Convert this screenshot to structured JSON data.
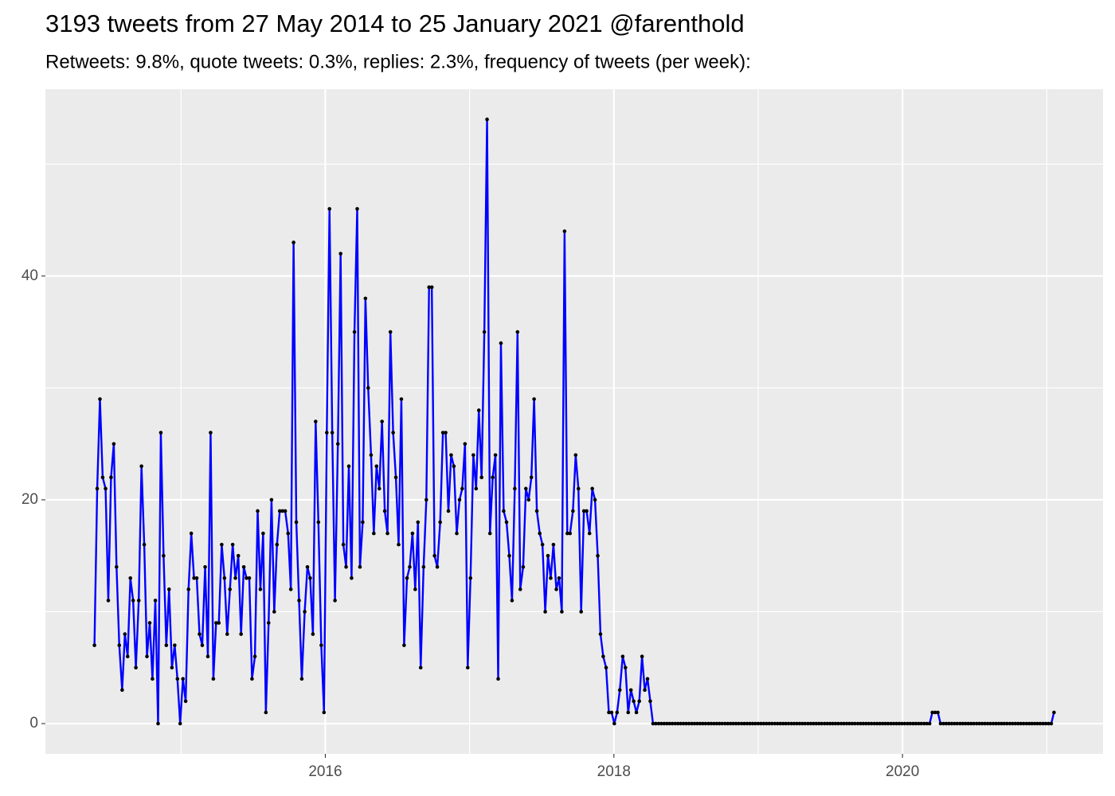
{
  "chart_data": {
    "type": "line",
    "title": "3193 tweets from 27 May 2014 to 25 January 2021 @farenthold",
    "subtitle": "Retweets: 9.8%, quote tweets: 0.3%, replies: 2.3%, frequency of tweets (per week):",
    "color": "#0000ff",
    "point_color": "#000000",
    "grid": true,
    "xlim": [
      2014.06,
      2021.39
    ],
    "xticks": [
      2016,
      2018,
      2020
    ],
    "ylim": [
      -2.7,
      56.7
    ],
    "yticks": [
      0,
      20,
      40
    ],
    "x": [
      2014.4,
      2014.419,
      2014.438,
      2014.457,
      2014.477,
      2014.496,
      2014.515,
      2014.534,
      2014.553,
      2014.572,
      2014.592,
      2014.611,
      2014.63,
      2014.649,
      2014.668,
      2014.687,
      2014.707,
      2014.726,
      2014.745,
      2014.764,
      2014.783,
      2014.802,
      2014.822,
      2014.841,
      2014.86,
      2014.879,
      2014.898,
      2014.917,
      2014.937,
      2014.956,
      2014.975,
      2014.994,
      2015.013,
      2015.032,
      2015.052,
      2015.071,
      2015.09,
      2015.109,
      2015.128,
      2015.147,
      2015.167,
      2015.186,
      2015.205,
      2015.224,
      2015.243,
      2015.262,
      2015.282,
      2015.301,
      2015.32,
      2015.339,
      2015.358,
      2015.377,
      2015.397,
      2015.416,
      2015.435,
      2015.454,
      2015.473,
      2015.492,
      2015.512,
      2015.531,
      2015.55,
      2015.569,
      2015.588,
      2015.607,
      2015.627,
      2015.646,
      2015.665,
      2015.684,
      2015.703,
      2015.722,
      2015.742,
      2015.761,
      2015.78,
      2015.799,
      2015.818,
      2015.837,
      2015.857,
      2015.876,
      2015.895,
      2015.914,
      2015.933,
      2015.952,
      2015.972,
      2015.991,
      2016.01,
      2016.029,
      2016.048,
      2016.067,
      2016.087,
      2016.106,
      2016.125,
      2016.144,
      2016.163,
      2016.182,
      2016.202,
      2016.221,
      2016.24,
      2016.259,
      2016.278,
      2016.297,
      2016.317,
      2016.336,
      2016.355,
      2016.374,
      2016.393,
      2016.412,
      2016.431,
      2016.451,
      2016.47,
      2016.489,
      2016.508,
      2016.527,
      2016.546,
      2016.566,
      2016.585,
      2016.604,
      2016.623,
      2016.642,
      2016.661,
      2016.681,
      2016.7,
      2016.719,
      2016.738,
      2016.757,
      2016.776,
      2016.796,
      2016.815,
      2016.834,
      2016.853,
      2016.872,
      2016.891,
      2016.911,
      2016.93,
      2016.949,
      2016.968,
      2016.987,
      2017.006,
      2017.026,
      2017.045,
      2017.064,
      2017.083,
      2017.102,
      2017.121,
      2017.141,
      2017.16,
      2017.179,
      2017.198,
      2017.217,
      2017.236,
      2017.256,
      2017.275,
      2017.294,
      2017.313,
      2017.332,
      2017.351,
      2017.371,
      2017.39,
      2017.409,
      2017.428,
      2017.447,
      2017.466,
      2017.486,
      2017.505,
      2017.524,
      2017.543,
      2017.562,
      2017.581,
      2017.601,
      2017.62,
      2017.639,
      2017.658,
      2017.677,
      2017.696,
      2017.716,
      2017.735,
      2017.754,
      2017.773,
      2017.792,
      2017.811,
      2017.831,
      2017.85,
      2017.869,
      2017.888,
      2017.907,
      2017.926,
      2017.946,
      2017.965,
      2017.984,
      2018.003,
      2018.022,
      2018.041,
      2018.061,
      2018.08,
      2018.099,
      2018.118,
      2018.137,
      2018.156,
      2018.176,
      2018.195,
      2018.214,
      2018.233,
      2018.252,
      2018.271,
      2018.29,
      2018.31,
      2018.329,
      2018.348,
      2018.367,
      2018.386,
      2018.405,
      2018.425,
      2018.444,
      2018.463,
      2018.482,
      2018.501,
      2018.52,
      2018.54,
      2018.559,
      2018.578,
      2018.597,
      2018.616,
      2018.635,
      2018.655,
      2018.674,
      2018.693,
      2018.712,
      2018.731,
      2018.75,
      2018.77,
      2018.789,
      2018.808,
      2018.827,
      2018.846,
      2018.865,
      2018.885,
      2018.904,
      2018.923,
      2018.942,
      2018.961,
      2018.98,
      2019.0,
      2019.019,
      2019.038,
      2019.057,
      2019.076,
      2019.095,
      2019.115,
      2019.134,
      2019.153,
      2019.172,
      2019.191,
      2019.21,
      2019.23,
      2019.249,
      2019.268,
      2019.287,
      2019.306,
      2019.325,
      2019.345,
      2019.364,
      2019.383,
      2019.402,
      2019.421,
      2019.44,
      2019.46,
      2019.479,
      2019.498,
      2019.517,
      2019.536,
      2019.555,
      2019.575,
      2019.594,
      2019.613,
      2019.632,
      2019.651,
      2019.67,
      2019.69,
      2019.709,
      2019.728,
      2019.747,
      2019.766,
      2019.785,
      2019.805,
      2019.824,
      2019.843,
      2019.862,
      2019.881,
      2019.9,
      2019.92,
      2019.939,
      2019.958,
      2019.977,
      2019.996,
      2020.015,
      2020.035,
      2020.054,
      2020.073,
      2020.092,
      2020.111,
      2020.13,
      2020.15,
      2020.169,
      2020.188,
      2020.207,
      2020.226,
      2020.245,
      2020.264,
      2020.284,
      2020.303,
      2020.322,
      2020.341,
      2020.36,
      2020.379,
      2020.399,
      2020.418,
      2020.437,
      2020.456,
      2020.475,
      2020.494,
      2020.514,
      2020.533,
      2020.552,
      2020.571,
      2020.59,
      2020.609,
      2020.629,
      2020.648,
      2020.667,
      2020.686,
      2020.705,
      2020.724,
      2020.744,
      2020.763,
      2020.782,
      2020.801,
      2020.82,
      2020.839,
      2020.859,
      2020.878,
      2020.897,
      2020.916,
      2020.935,
      2020.954,
      2020.974,
      2020.993,
      2021.012,
      2021.031,
      2021.05
    ],
    "values": [
      7,
      21,
      29,
      22,
      21,
      11,
      22,
      25,
      14,
      7,
      3,
      8,
      6,
      13,
      11,
      5,
      11,
      23,
      16,
      6,
      9,
      4,
      11,
      0,
      26,
      15,
      7,
      12,
      5,
      7,
      4,
      0,
      4,
      2,
      12,
      17,
      13,
      13,
      8,
      7,
      14,
      6,
      26,
      4,
      9,
      9,
      16,
      13,
      8,
      12,
      16,
      13,
      15,
      8,
      14,
      13,
      13,
      4,
      6,
      19,
      12,
      17,
      1,
      9,
      20,
      10,
      16,
      19,
      19,
      19,
      17,
      12,
      43,
      18,
      11,
      4,
      10,
      14,
      13,
      8,
      27,
      18,
      7,
      1,
      26,
      46,
      26,
      11,
      25,
      42,
      16,
      14,
      23,
      13,
      35,
      46,
      14,
      18,
      38,
      30,
      24,
      17,
      23,
      21,
      27,
      19,
      17,
      35,
      26,
      22,
      16,
      29,
      7,
      13,
      14,
      17,
      12,
      18,
      5,
      14,
      20,
      39,
      39,
      15,
      14,
      18,
      26,
      26,
      19,
      24,
      23,
      17,
      20,
      21,
      25,
      5,
      13,
      24,
      21,
      28,
      22,
      35,
      54,
      17,
      22,
      24,
      4,
      34,
      19,
      18,
      15,
      11,
      21,
      35,
      12,
      14,
      21,
      20,
      22,
      29,
      19,
      17,
      16,
      10,
      15,
      13,
      16,
      12,
      13,
      10,
      44,
      17,
      17,
      19,
      24,
      21,
      10,
      19,
      19,
      17,
      21,
      20,
      15,
      8,
      6,
      5,
      1,
      1,
      0,
      1,
      3,
      6,
      5,
      1,
      3,
      2,
      1,
      2,
      6,
      3,
      4,
      2,
      0,
      0,
      0,
      0,
      0,
      0,
      0,
      0,
      0,
      0,
      0,
      0,
      0,
      0,
      0,
      0,
      0,
      0,
      0,
      0,
      0,
      0,
      0,
      0,
      0,
      0,
      0,
      0,
      0,
      0,
      0,
      0,
      0,
      0,
      0,
      0,
      0,
      0,
      0,
      0,
      0,
      0,
      0,
      0,
      0,
      0,
      0,
      0,
      0,
      0,
      0,
      0,
      0,
      0,
      0,
      0,
      0,
      0,
      0,
      0,
      0,
      0,
      0,
      0,
      0,
      0,
      0,
      0,
      0,
      0,
      0,
      0,
      0,
      0,
      0,
      0,
      0,
      0,
      0,
      0,
      0,
      0,
      0,
      0,
      0,
      0,
      0,
      0,
      0,
      0,
      0,
      0,
      0,
      0,
      0,
      0,
      0,
      0,
      0,
      0,
      0,
      1,
      1,
      1,
      0,
      0,
      0,
      0,
      0,
      0,
      0,
      0,
      0,
      0,
      0,
      0,
      0,
      0,
      0,
      0,
      0,
      0,
      0,
      0,
      0,
      0,
      0,
      0,
      0,
      0,
      0,
      0,
      0,
      0,
      0,
      0,
      0,
      0,
      0,
      0,
      0,
      0,
      0,
      0,
      0,
      1
    ]
  }
}
